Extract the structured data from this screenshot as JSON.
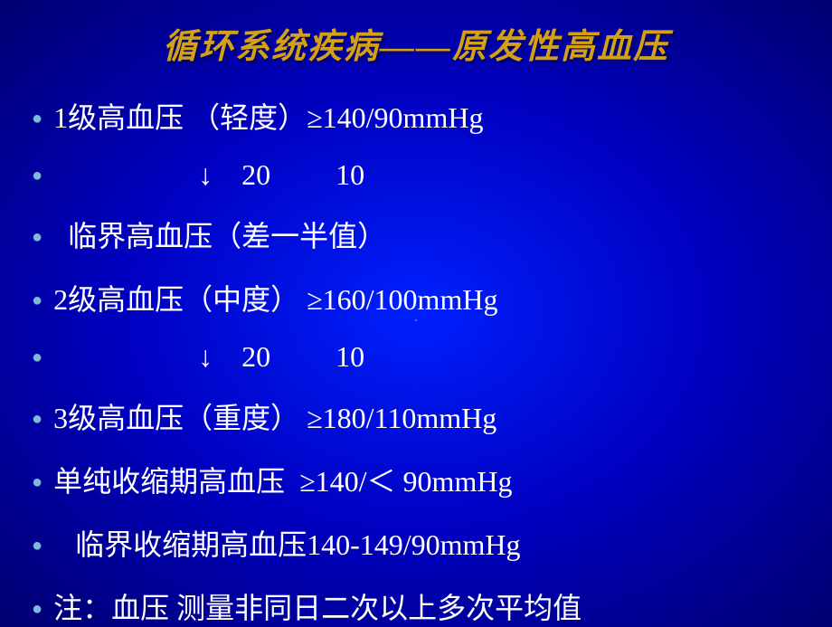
{
  "title": "循环系统疾病——原发性高血压",
  "pageNumber": "·",
  "lines": [
    "1级高血压 （轻度）≥140/90mmHg",
    "                    ↓    20         10",
    "  临界高血压（差一半值）",
    "2级高血压（中度） ≥160/100mmHg",
    "                    ↓    20         10",
    "3级高血压（重度） ≥180/110mmHg",
    "单纯收缩期高血压  ≥140/＜ 90mmHg",
    "   临界收缩期高血压140-149/90mmHg",
    "注：血压 测量非同日二次以上多次平均值"
  ]
}
